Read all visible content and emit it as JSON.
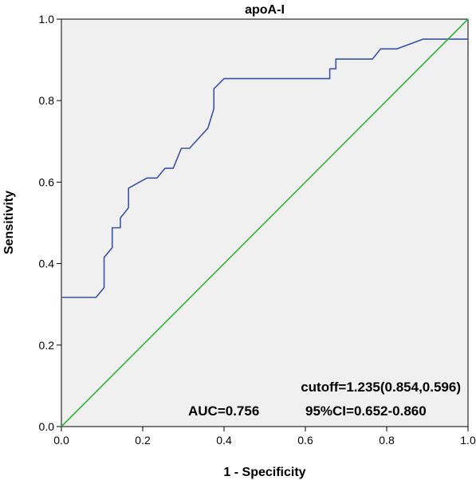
{
  "chart_data": {
    "type": "line",
    "title": "apoA-I",
    "xlabel": "1 - Specificity",
    "ylabel": "Sensitivity",
    "xlim": [
      0,
      1
    ],
    "ylim": [
      0,
      1
    ],
    "x_ticks": [
      "0.0",
      "0.2",
      "0.4",
      "0.6",
      "0.8",
      "1.0"
    ],
    "y_ticks": [
      "0.0",
      "0.2",
      "0.4",
      "0.6",
      "0.8",
      "1.0"
    ],
    "grid": false,
    "series": [
      {
        "color": "#3a52a4",
        "points": [
          [
            0.0,
            0.317
          ],
          [
            0.085,
            0.317
          ],
          [
            0.105,
            0.341
          ],
          [
            0.105,
            0.415
          ],
          [
            0.125,
            0.439
          ],
          [
            0.125,
            0.488
          ],
          [
            0.145,
            0.488
          ],
          [
            0.145,
            0.512
          ],
          [
            0.165,
            0.537
          ],
          [
            0.165,
            0.585
          ],
          [
            0.21,
            0.61
          ],
          [
            0.235,
            0.61
          ],
          [
            0.255,
            0.634
          ],
          [
            0.275,
            0.634
          ],
          [
            0.295,
            0.683
          ],
          [
            0.315,
            0.683
          ],
          [
            0.36,
            0.732
          ],
          [
            0.375,
            0.78
          ],
          [
            0.375,
            0.829
          ],
          [
            0.4,
            0.854
          ],
          [
            0.66,
            0.854
          ],
          [
            0.66,
            0.878
          ],
          [
            0.675,
            0.878
          ],
          [
            0.675,
            0.902
          ],
          [
            0.765,
            0.902
          ],
          [
            0.785,
            0.927
          ],
          [
            0.825,
            0.927
          ],
          [
            0.89,
            0.951
          ],
          [
            1.0,
            0.951
          ]
        ]
      },
      {
        "color": "#2fb33b",
        "points": [
          [
            0,
            0
          ],
          [
            1,
            1
          ]
        ]
      }
    ],
    "annotations": [
      "cutoff=1.235(0.854,0.596)",
      "AUC=0.756",
      "95%CI=0.652-0.860"
    ],
    "plot_background": "#f0f0f0"
  }
}
